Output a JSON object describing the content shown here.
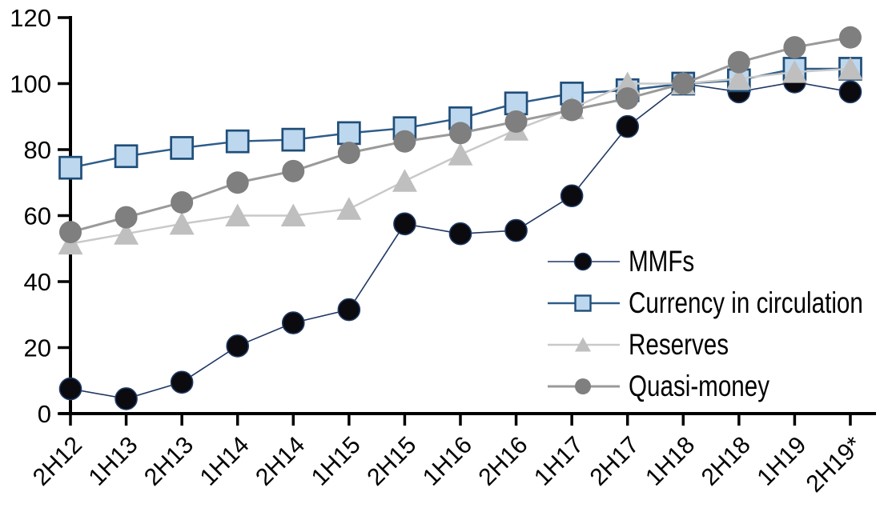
{
  "chart_data": {
    "type": "line",
    "title": "",
    "xlabel": "",
    "ylabel": "",
    "categories": [
      "2H12",
      "1H13",
      "2H13",
      "1H14",
      "2H14",
      "1H15",
      "2H15",
      "1H16",
      "2H16",
      "1H17",
      "2H17",
      "1H18",
      "2H18",
      "1H19",
      "2H19*"
    ],
    "series": [
      {
        "name": "MMFs",
        "marker": "circle",
        "marker_fill": "#0a0a0f",
        "marker_stroke": "#1f3864",
        "line_color": "#203864",
        "line_width": 1.6,
        "values": [
          7.5,
          4.5,
          9.5,
          20.5,
          27.5,
          31.5,
          57.5,
          54.5,
          55.5,
          66,
          87,
          100,
          97.5,
          100.5,
          97.5
        ]
      },
      {
        "name": "Currency in circulation",
        "marker": "square",
        "marker_fill": "#bdd7ee",
        "marker_stroke": "#1f4e79",
        "line_color": "#2e5c8a",
        "line_width": 2.5,
        "values": [
          74.5,
          78,
          80.5,
          82.5,
          83,
          85,
          86.5,
          89.5,
          94,
          97,
          98,
          100,
          101,
          104.5,
          104.5
        ]
      },
      {
        "name": "Reserves",
        "marker": "triangle",
        "marker_fill": "#bfbfbf",
        "marker_stroke": "none",
        "line_color": "#c9c9c9",
        "line_width": 2.5,
        "values": [
          51.5,
          54.5,
          57.5,
          60,
          60,
          62,
          70.5,
          78.5,
          86,
          92.5,
          100,
          100,
          101.5,
          103.5,
          104.5
        ]
      },
      {
        "name": "Quasi-money",
        "marker": "circle",
        "marker_fill": "#7f7f7f",
        "marker_stroke": "none",
        "line_color": "#9a9a9a",
        "line_width": 3,
        "values": [
          55,
          59.5,
          64,
          70,
          73.5,
          79,
          82.5,
          85,
          88.5,
          92,
          95.5,
          100,
          106.5,
          111,
          114
        ]
      }
    ],
    "ylim": [
      0,
      120
    ],
    "yticks": [
      0,
      20,
      40,
      60,
      80,
      100,
      120
    ],
    "grid": false,
    "legend_position": "inside-right",
    "axis_color": "#000000",
    "text_color": "#000000"
  }
}
